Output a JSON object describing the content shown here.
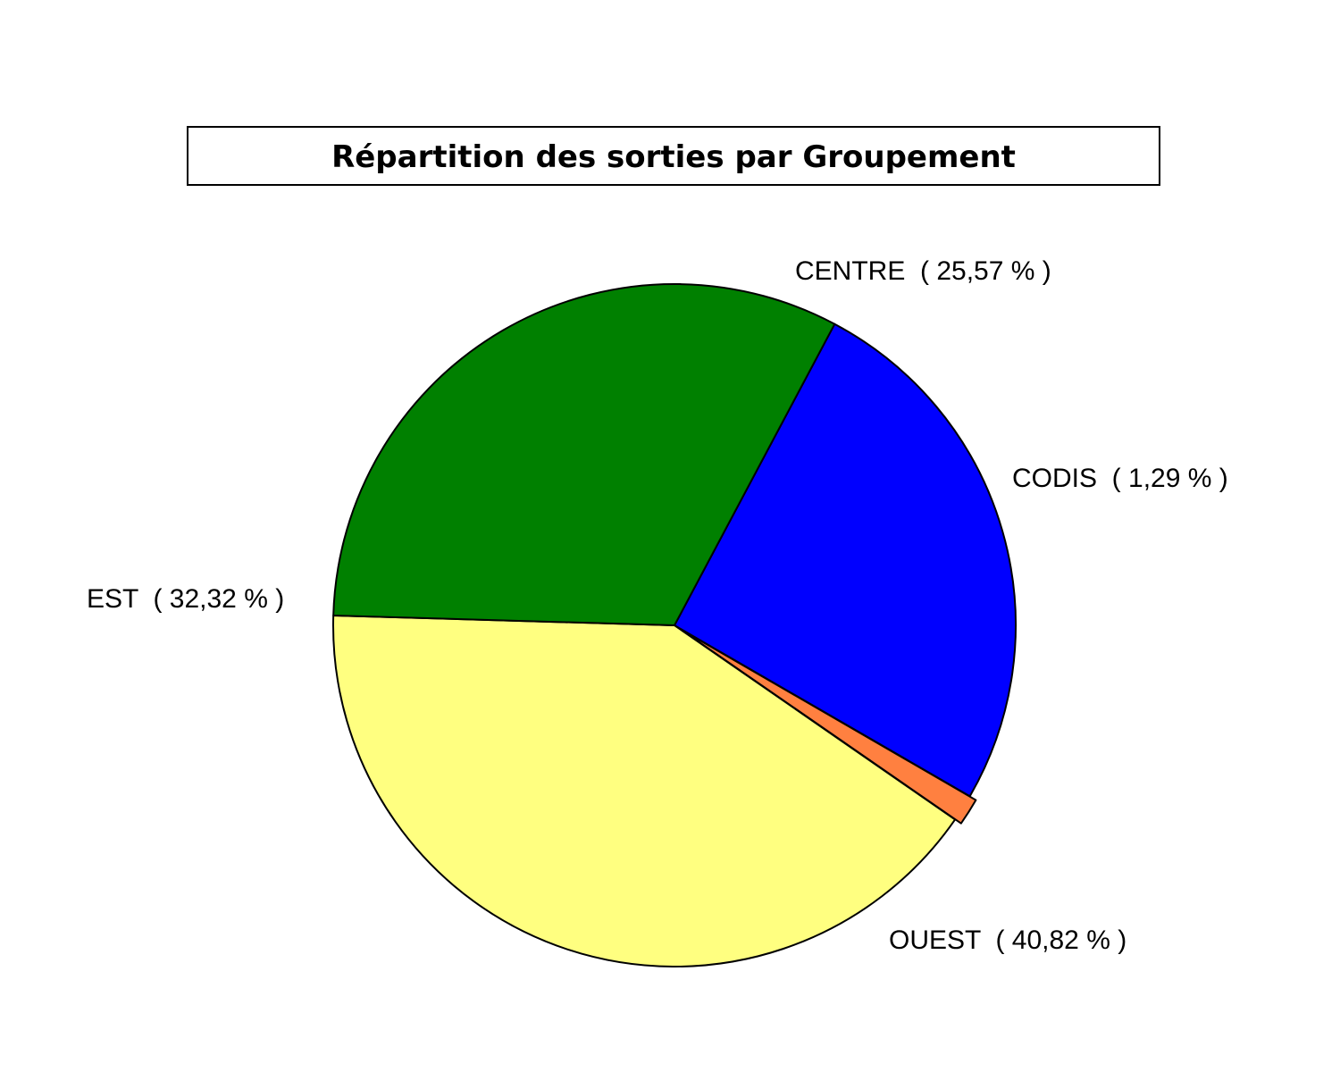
{
  "chart_data": {
    "type": "pie",
    "title": "Répartition des sorties par Groupement",
    "slices": [
      {
        "name": "CENTRE",
        "value": 25.57,
        "label": "CENTRE  ( 25,57 % )",
        "color": "#0000ff"
      },
      {
        "name": "CODIS",
        "value": 1.29,
        "label": "CODIS  ( 1,29 % )",
        "color": "#ff8040"
      },
      {
        "name": "OUEST",
        "value": 40.82,
        "label": "OUEST  ( 40,82 % )",
        "color": "#ffff80"
      },
      {
        "name": "EST",
        "value": 32.32,
        "label": "EST  ( 32,32 % )",
        "color": "#008000"
      }
    ],
    "start_angle_deg": -62,
    "direction": "clockwise",
    "legend": "none",
    "labels": "outside"
  }
}
